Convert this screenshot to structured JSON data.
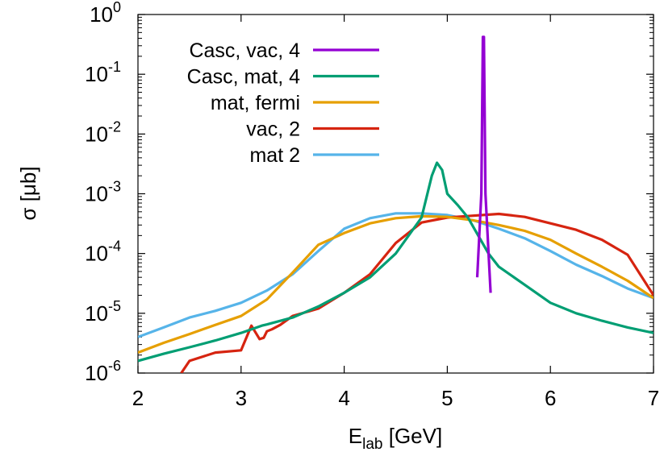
{
  "chart_data": {
    "type": "line",
    "title": "",
    "xlabel_main": "E",
    "xlabel_sub": "lab",
    "xlabel_unit": " [GeV]",
    "ylabel": "σ [μb]",
    "xlim": [
      2,
      7
    ],
    "ylim": [
      1e-06,
      1
    ],
    "y_scale": "log",
    "x_ticks": [
      "2",
      "3",
      "4",
      "5",
      "6",
      "7"
    ],
    "y_ticks": [
      {
        "base": "10",
        "exp": "-6"
      },
      {
        "base": "10",
        "exp": "-5"
      },
      {
        "base": "10",
        "exp": "-4"
      },
      {
        "base": "10",
        "exp": "-3"
      },
      {
        "base": "10",
        "exp": "-2"
      },
      {
        "base": "10",
        "exp": "-1"
      },
      {
        "base": "10",
        "exp": "0"
      }
    ],
    "legend_position": "top-left",
    "series": [
      {
        "name": "Casc, vac, 4",
        "color": "#9400d3",
        "points": [
          [
            5.29,
            4e-05
          ],
          [
            5.33,
            0.001
          ],
          [
            5.345,
            0.42
          ],
          [
            5.355,
            0.42
          ],
          [
            5.37,
            0.001
          ],
          [
            5.42,
            2.2e-05
          ]
        ]
      },
      {
        "name": "Casc, mat, 4",
        "color": "#009e73",
        "points": [
          [
            2.0,
            1.6e-06
          ],
          [
            2.25,
            2.1e-06
          ],
          [
            2.5,
            2.7e-06
          ],
          [
            2.75,
            3.5e-06
          ],
          [
            3.0,
            4.7e-06
          ],
          [
            3.2,
            6.2e-06
          ],
          [
            3.25,
            6.5e-06
          ],
          [
            3.5,
            8.5e-06
          ],
          [
            3.75,
            1.3e-05
          ],
          [
            4.0,
            2.2e-05
          ],
          [
            4.25,
            4e-05
          ],
          [
            4.5,
            0.0001
          ],
          [
            4.75,
            0.0004
          ],
          [
            4.85,
            0.002
          ],
          [
            4.9,
            0.0033
          ],
          [
            4.95,
            0.0025
          ],
          [
            5.0,
            0.001
          ],
          [
            5.1,
            0.00065
          ],
          [
            5.2,
            0.0004
          ],
          [
            5.3,
            0.0002
          ],
          [
            5.4,
            0.0001
          ],
          [
            5.5,
            6e-05
          ],
          [
            5.75,
            3e-05
          ],
          [
            6.0,
            1.5e-05
          ],
          [
            6.25,
            1e-05
          ],
          [
            6.5,
            7.5e-06
          ],
          [
            6.75,
            5.8e-06
          ],
          [
            7.0,
            4.7e-06
          ]
        ]
      },
      {
        "name": "mat, fermi",
        "color": "#e69f00",
        "points": [
          [
            2.0,
            2.2e-06
          ],
          [
            2.25,
            3.2e-06
          ],
          [
            2.5,
            4.5e-06
          ],
          [
            2.75,
            6.4e-06
          ],
          [
            3.0,
            9e-06
          ],
          [
            3.25,
            1.7e-05
          ],
          [
            3.5,
            4.8e-05
          ],
          [
            3.75,
            0.00014
          ],
          [
            4.0,
            0.00022
          ],
          [
            4.25,
            0.00032
          ],
          [
            4.5,
            0.00039
          ],
          [
            4.75,
            0.00042
          ],
          [
            5.0,
            0.00041
          ],
          [
            5.25,
            0.00036
          ],
          [
            5.5,
            0.0003
          ],
          [
            5.75,
            0.00024
          ],
          [
            6.0,
            0.00017
          ],
          [
            6.25,
            0.0001
          ],
          [
            6.5,
            6e-05
          ],
          [
            6.75,
            3.5e-05
          ],
          [
            7.0,
            1.8e-05
          ]
        ]
      },
      {
        "name": "vac, 2",
        "color": "#d62410",
        "points": [
          [
            2.42,
            1e-06
          ],
          [
            2.5,
            1.6e-06
          ],
          [
            2.75,
            2.2e-06
          ],
          [
            3.0,
            2.4e-06
          ],
          [
            3.1,
            6.2e-06
          ],
          [
            3.18,
            3.7e-06
          ],
          [
            3.22,
            3.9e-06
          ],
          [
            3.25,
            5e-06
          ],
          [
            3.3,
            5.4e-06
          ],
          [
            3.38,
            6.4e-06
          ],
          [
            3.5,
            9e-06
          ],
          [
            3.75,
            1.2e-05
          ],
          [
            4.0,
            2.2e-05
          ],
          [
            4.25,
            4.5e-05
          ],
          [
            4.5,
            0.00015
          ],
          [
            4.75,
            0.00033
          ],
          [
            5.0,
            0.0004
          ],
          [
            5.25,
            0.00043
          ],
          [
            5.5,
            0.00046
          ],
          [
            5.75,
            0.00041
          ],
          [
            6.0,
            0.00032
          ],
          [
            6.25,
            0.00025
          ],
          [
            6.5,
            0.00017
          ],
          [
            6.75,
            9.5e-05
          ],
          [
            7.0,
            2e-05
          ]
        ]
      },
      {
        "name": "mat 2",
        "color": "#56b4e9",
        "points": [
          [
            2.0,
            4e-06
          ],
          [
            2.25,
            5.8e-06
          ],
          [
            2.5,
            8.5e-06
          ],
          [
            2.75,
            1.1e-05
          ],
          [
            3.0,
            1.5e-05
          ],
          [
            3.25,
            2.4e-05
          ],
          [
            3.5,
            4.5e-05
          ],
          [
            3.75,
            0.00011
          ],
          [
            4.0,
            0.00026
          ],
          [
            4.25,
            0.00039
          ],
          [
            4.5,
            0.00047
          ],
          [
            4.75,
            0.00047
          ],
          [
            5.0,
            0.00044
          ],
          [
            5.25,
            0.00036
          ],
          [
            5.5,
            0.00026
          ],
          [
            5.75,
            0.00018
          ],
          [
            6.0,
            0.00011
          ],
          [
            6.25,
            6.5e-05
          ],
          [
            6.5,
            4.2e-05
          ],
          [
            6.75,
            2.6e-05
          ],
          [
            7.0,
            1.8e-05
          ]
        ]
      }
    ]
  }
}
